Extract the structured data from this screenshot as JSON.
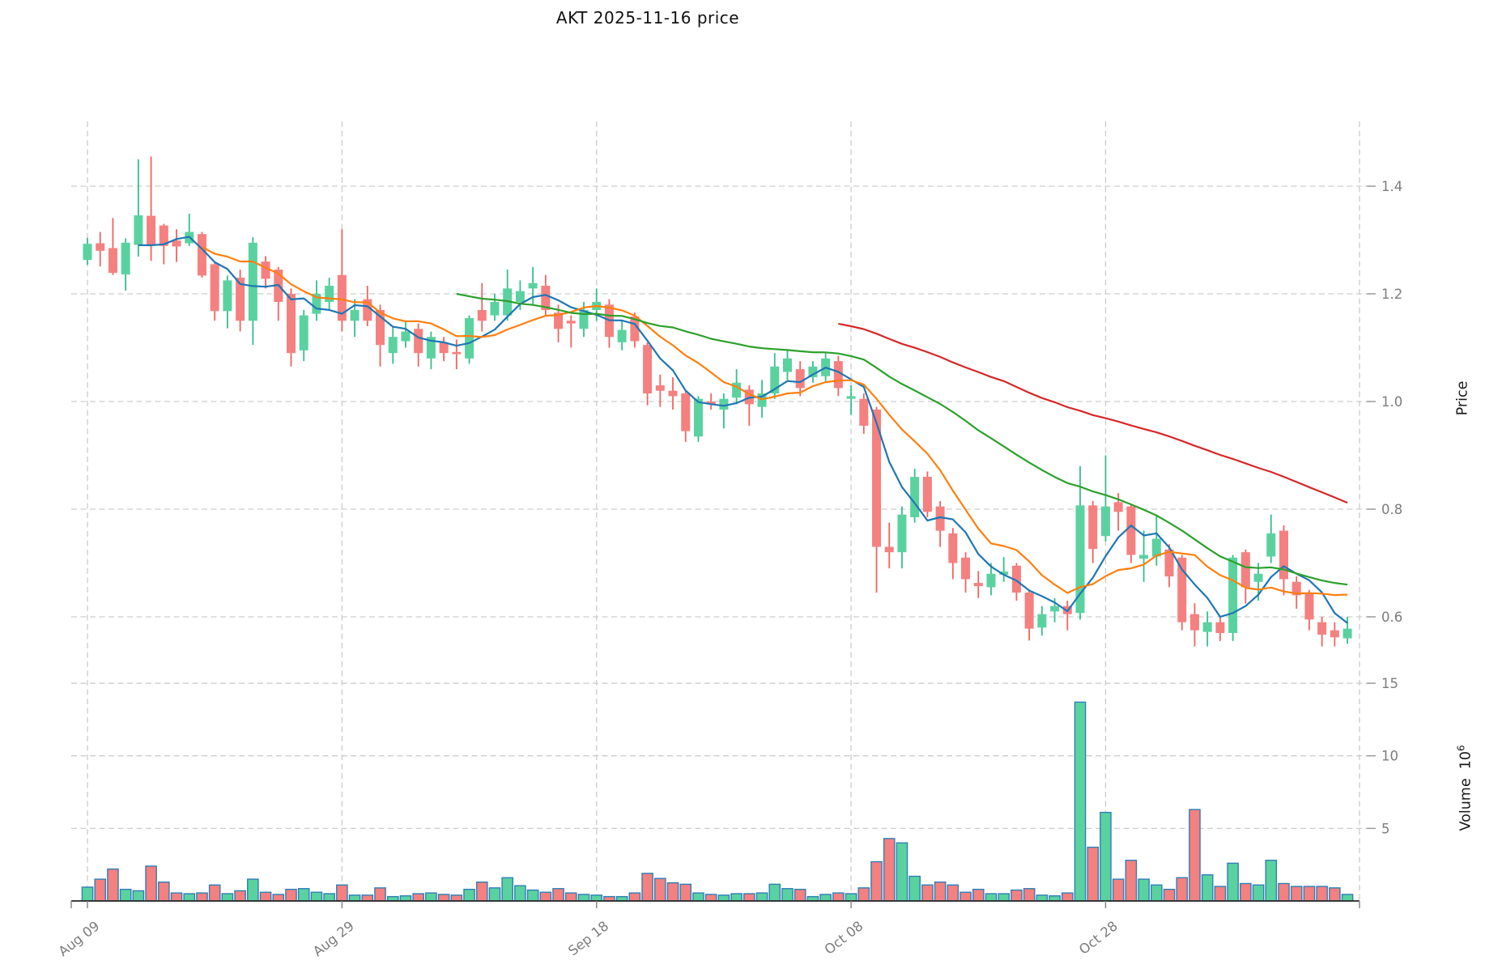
{
  "title": "AKT  2025-11-16  price",
  "symbol": "AKT",
  "as_of_date": "2025-11-16",
  "axes": {
    "price_label": "Price",
    "volume_label": "Volume",
    "volume_exp_base": "10",
    "volume_exponent": "6",
    "price_ticks": [
      1.4,
      1.2,
      1.0,
      0.8,
      0.6
    ],
    "volume_ticks": [
      15,
      10,
      5
    ],
    "x_ticks": [
      {
        "label": "Aug 09",
        "day": 0
      },
      {
        "label": "Aug 29",
        "day": 20
      },
      {
        "label": "Sep 18",
        "day": 40
      },
      {
        "label": "Oct 08",
        "day": 60
      },
      {
        "label": "Oct 28",
        "day": 80
      }
    ]
  },
  "colors": {
    "up_body": "#5ad2a0",
    "down_body": "#f58080",
    "up_wick": "#33c08d",
    "down_wick": "#f26360",
    "volume_edge": "#2e7eb8",
    "ma5": "#1f77b4",
    "ma10": "#ff7f0e",
    "ma30": "#2ca02c",
    "ma60": "#d62728",
    "grid": "#cdcdcd",
    "tick_text": "#7c7c7c",
    "axis_line": "#262626",
    "title_text": "#111111"
  },
  "chart_data": {
    "type": "candlestick",
    "title": "AKT  2025-11-16  price",
    "xlabel": "",
    "ylabel": "Price",
    "ylabel2": "Volume 10^6",
    "grid": true,
    "price_axis_ticks": [
      0.6,
      0.8,
      1.0,
      1.2,
      1.4
    ],
    "volume_axis_ticks_millions": [
      5,
      10,
      15
    ],
    "dates": {
      "start": "2025-08-09",
      "end": "2025-11-16",
      "interval": "1d",
      "count": 100
    },
    "x_tick_days": [
      0,
      20,
      40,
      60,
      80
    ],
    "moving_averages": [
      {
        "period": 5,
        "color": "#1f77b4"
      },
      {
        "period": 10,
        "color": "#ff7f0e"
      },
      {
        "period": 30,
        "color": "#2ca02c"
      },
      {
        "period": 60,
        "color": "#d62728"
      }
    ],
    "ohlc": [
      [
        1.263,
        1.304,
        1.254,
        1.293
      ],
      [
        1.294,
        1.315,
        1.251,
        1.28
      ],
      [
        1.285,
        1.341,
        1.235,
        1.239
      ],
      [
        1.236,
        1.303,
        1.206,
        1.295
      ],
      [
        1.291,
        1.45,
        1.269,
        1.346
      ],
      [
        1.345,
        1.455,
        1.261,
        1.291
      ],
      [
        1.327,
        1.33,
        1.255,
        1.289
      ],
      [
        1.299,
        1.32,
        1.259,
        1.288
      ],
      [
        1.294,
        1.349,
        1.289,
        1.315
      ],
      [
        1.311,
        1.315,
        1.23,
        1.234
      ],
      [
        1.255,
        1.259,
        1.15,
        1.168
      ],
      [
        1.168,
        1.234,
        1.136,
        1.225
      ],
      [
        1.23,
        1.245,
        1.13,
        1.15
      ],
      [
        1.15,
        1.305,
        1.105,
        1.295
      ],
      [
        1.26,
        1.27,
        1.21,
        1.228
      ],
      [
        1.245,
        1.25,
        1.15,
        1.185
      ],
      [
        1.2,
        1.21,
        1.065,
        1.09
      ],
      [
        1.095,
        1.17,
        1.075,
        1.16
      ],
      [
        1.163,
        1.225,
        1.15,
        1.2
      ],
      [
        1.185,
        1.23,
        1.17,
        1.215
      ],
      [
        1.235,
        1.32,
        1.13,
        1.15
      ],
      [
        1.15,
        1.19,
        1.12,
        1.17
      ],
      [
        1.19,
        1.215,
        1.14,
        1.15
      ],
      [
        1.17,
        1.18,
        1.065,
        1.105
      ],
      [
        1.09,
        1.14,
        1.07,
        1.12
      ],
      [
        1.112,
        1.15,
        1.1,
        1.13
      ],
      [
        1.135,
        1.145,
        1.065,
        1.09
      ],
      [
        1.08,
        1.13,
        1.06,
        1.12
      ],
      [
        1.11,
        1.12,
        1.075,
        1.09
      ],
      [
        1.092,
        1.115,
        1.06,
        1.088
      ],
      [
        1.08,
        1.16,
        1.07,
        1.155
      ],
      [
        1.17,
        1.22,
        1.13,
        1.15
      ],
      [
        1.16,
        1.2,
        1.15,
        1.185
      ],
      [
        1.16,
        1.245,
        1.15,
        1.21
      ],
      [
        1.185,
        1.225,
        1.17,
        1.205
      ],
      [
        1.21,
        1.25,
        1.18,
        1.22
      ],
      [
        1.215,
        1.235,
        1.16,
        1.17
      ],
      [
        1.165,
        1.18,
        1.11,
        1.135
      ],
      [
        1.15,
        1.16,
        1.1,
        1.145
      ],
      [
        1.135,
        1.185,
        1.12,
        1.17
      ],
      [
        1.17,
        1.21,
        1.15,
        1.185
      ],
      [
        1.18,
        1.19,
        1.1,
        1.12
      ],
      [
        1.11,
        1.15,
        1.095,
        1.133
      ],
      [
        1.158,
        1.165,
        1.1,
        1.112
      ],
      [
        1.105,
        1.11,
        0.993,
        1.015
      ],
      [
        1.03,
        1.05,
        0.99,
        1.02
      ],
      [
        1.02,
        1.045,
        0.985,
        1.01
      ],
      [
        1.015,
        1.02,
        0.925,
        0.945
      ],
      [
        0.935,
        1.01,
        0.925,
        1.005
      ],
      [
        1.0,
        1.015,
        0.985,
        0.995
      ],
      [
        0.985,
        1.015,
        0.95,
        1.005
      ],
      [
        1.007,
        1.06,
        0.995,
        1.035
      ],
      [
        1.022,
        1.03,
        0.955,
        0.995
      ],
      [
        0.99,
        1.04,
        0.97,
        1.015
      ],
      [
        1.015,
        1.09,
        1.005,
        1.065
      ],
      [
        1.055,
        1.095,
        1.04,
        1.08
      ],
      [
        1.06,
        1.075,
        1.01,
        1.025
      ],
      [
        1.045,
        1.075,
        1.035,
        1.065
      ],
      [
        1.047,
        1.09,
        1.035,
        1.08
      ],
      [
        1.075,
        1.085,
        1.01,
        1.025
      ],
      [
        1.005,
        1.03,
        0.975,
        1.01
      ],
      [
        1.005,
        1.015,
        0.94,
        0.955
      ],
      [
        0.985,
        0.99,
        0.645,
        0.73
      ],
      [
        0.73,
        0.775,
        0.69,
        0.72
      ],
      [
        0.72,
        0.805,
        0.69,
        0.79
      ],
      [
        0.785,
        0.875,
        0.775,
        0.86
      ],
      [
        0.86,
        0.87,
        0.785,
        0.795
      ],
      [
        0.805,
        0.815,
        0.73,
        0.76
      ],
      [
        0.755,
        0.765,
        0.67,
        0.7
      ],
      [
        0.71,
        0.72,
        0.645,
        0.67
      ],
      [
        0.663,
        0.685,
        0.635,
        0.657
      ],
      [
        0.655,
        0.7,
        0.64,
        0.68
      ],
      [
        0.678,
        0.711,
        0.665,
        0.684
      ],
      [
        0.695,
        0.7,
        0.63,
        0.645
      ],
      [
        0.645,
        0.65,
        0.556,
        0.578
      ],
      [
        0.58,
        0.62,
        0.565,
        0.605
      ],
      [
        0.61,
        0.635,
        0.59,
        0.62
      ],
      [
        0.62,
        0.63,
        0.575,
        0.605
      ],
      [
        0.607,
        0.88,
        0.595,
        0.807
      ],
      [
        0.807,
        0.815,
        0.7,
        0.726
      ],
      [
        0.75,
        0.9,
        0.74,
        0.805
      ],
      [
        0.813,
        0.83,
        0.76,
        0.795
      ],
      [
        0.805,
        0.81,
        0.7,
        0.715
      ],
      [
        0.708,
        0.76,
        0.665,
        0.715
      ],
      [
        0.712,
        0.79,
        0.695,
        0.745
      ],
      [
        0.725,
        0.735,
        0.655,
        0.675
      ],
      [
        0.71,
        0.715,
        0.575,
        0.59
      ],
      [
        0.605,
        0.625,
        0.545,
        0.575
      ],
      [
        0.572,
        0.61,
        0.545,
        0.59
      ],
      [
        0.59,
        0.6,
        0.555,
        0.57
      ],
      [
        0.57,
        0.715,
        0.555,
        0.71
      ],
      [
        0.72,
        0.725,
        0.625,
        0.655
      ],
      [
        0.665,
        0.7,
        0.63,
        0.68
      ],
      [
        0.712,
        0.79,
        0.7,
        0.755
      ],
      [
        0.76,
        0.77,
        0.64,
        0.67
      ],
      [
        0.665,
        0.675,
        0.615,
        0.64
      ],
      [
        0.645,
        0.65,
        0.575,
        0.595
      ],
      [
        0.59,
        0.6,
        0.545,
        0.567
      ],
      [
        0.575,
        0.59,
        0.545,
        0.562
      ],
      [
        0.56,
        0.6,
        0.55,
        0.578
      ]
    ],
    "volume_millions": [
      0.95,
      1.5,
      2.2,
      0.8,
      0.7,
      2.4,
      1.3,
      0.55,
      0.5,
      0.55,
      1.1,
      0.5,
      0.7,
      1.5,
      0.6,
      0.45,
      0.8,
      0.85,
      0.6,
      0.5,
      1.1,
      0.4,
      0.4,
      0.9,
      0.3,
      0.35,
      0.5,
      0.55,
      0.45,
      0.4,
      0.8,
      1.3,
      0.9,
      1.6,
      1.05,
      0.75,
      0.6,
      0.85,
      0.55,
      0.45,
      0.4,
      0.3,
      0.3,
      0.55,
      1.9,
      1.55,
      1.25,
      1.15,
      0.55,
      0.45,
      0.4,
      0.5,
      0.5,
      0.55,
      1.15,
      0.85,
      0.8,
      0.3,
      0.45,
      0.55,
      0.5,
      0.9,
      2.7,
      4.3,
      4.0,
      1.7,
      1.1,
      1.3,
      1.1,
      0.6,
      0.8,
      0.5,
      0.5,
      0.75,
      0.85,
      0.4,
      0.35,
      0.55,
      13.7,
      3.7,
      6.1,
      1.5,
      2.8,
      1.5,
      1.1,
      0.8,
      1.6,
      6.3,
      1.8,
      1.0,
      2.6,
      1.2,
      1.1,
      2.8,
      1.2,
      1.0,
      1.0,
      1.0,
      0.9,
      0.45
    ]
  }
}
